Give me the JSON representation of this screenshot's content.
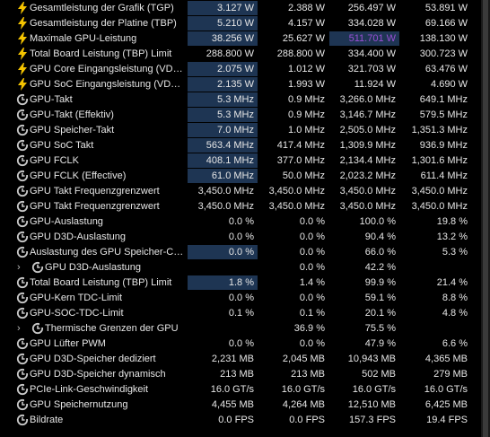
{
  "rows": [
    {
      "icon": "bolt",
      "label": "Gesamtleistung der Grafik (TGP)",
      "v": [
        "3.127 W",
        "2.388 W",
        "256.497 W",
        "53.891 W"
      ],
      "hi": [
        true,
        false,
        false,
        false
      ]
    },
    {
      "icon": "bolt",
      "label": "Gesamtleistung der Platine (TBP)",
      "v": [
        "5.210 W",
        "4.157 W",
        "334.028 W",
        "69.166 W"
      ],
      "hi": [
        true,
        false,
        false,
        false
      ]
    },
    {
      "icon": "bolt",
      "label": "Maximale GPU-Leistung",
      "v": [
        "38.256 W",
        "25.627 W",
        "511.701 W",
        "138.130 W"
      ],
      "hi": [
        true,
        false,
        "max",
        false
      ]
    },
    {
      "icon": "bolt",
      "label": "Total Board Leistung (TBP) Limit",
      "v": [
        "288.800 W",
        "288.800 W",
        "334.400 W",
        "300.723 W"
      ],
      "hi": [
        false,
        false,
        false,
        false
      ]
    },
    {
      "icon": "bolt",
      "label": "GPU Core Eingangsleistung (VDDC...",
      "v": [
        "2.075 W",
        "1.012 W",
        "321.703 W",
        "63.476 W"
      ],
      "hi": [
        true,
        false,
        false,
        false
      ]
    },
    {
      "icon": "bolt",
      "label": "GPU SoC Eingangsleistung (VDDC...",
      "v": [
        "2.135 W",
        "1.993 W",
        "11.924 W",
        "4.690 W"
      ],
      "hi": [
        true,
        false,
        false,
        false
      ]
    },
    {
      "icon": "clock",
      "label": "GPU-Takt",
      "v": [
        "5.3 MHz",
        "0.9 MHz",
        "3,266.0 MHz",
        "649.1 MHz"
      ],
      "hi": [
        true,
        false,
        false,
        false
      ]
    },
    {
      "icon": "clock",
      "label": "GPU-Takt (Effektiv)",
      "v": [
        "5.3 MHz",
        "0.9 MHz",
        "3,146.7 MHz",
        "579.5 MHz"
      ],
      "hi": [
        true,
        false,
        false,
        false
      ]
    },
    {
      "icon": "clock",
      "label": "GPU Speicher-Takt",
      "v": [
        "7.0 MHz",
        "1.0 MHz",
        "2,505.0 MHz",
        "1,351.3 MHz"
      ],
      "hi": [
        true,
        false,
        false,
        false
      ]
    },
    {
      "icon": "clock",
      "label": "GPU SoC Takt",
      "v": [
        "563.4 MHz",
        "417.4 MHz",
        "1,309.9 MHz",
        "936.9 MHz"
      ],
      "hi": [
        true,
        false,
        false,
        false
      ]
    },
    {
      "icon": "clock",
      "label": "GPU FCLK",
      "v": [
        "408.1 MHz",
        "377.0 MHz",
        "2,134.4 MHz",
        "1,301.6 MHz"
      ],
      "hi": [
        true,
        false,
        false,
        false
      ]
    },
    {
      "icon": "clock",
      "label": "GPU FCLK (Effective)",
      "v": [
        "61.0 MHz",
        "50.0 MHz",
        "2,023.2 MHz",
        "611.4 MHz"
      ],
      "hi": [
        true,
        false,
        false,
        false
      ]
    },
    {
      "icon": "clock",
      "label": "GPU Takt Frequenzgrenzwert",
      "v": [
        "3,450.0 MHz",
        "3,450.0 MHz",
        "3,450.0 MHz",
        "3,450.0 MHz"
      ],
      "hi": [
        false,
        false,
        false,
        false
      ]
    },
    {
      "icon": "clock",
      "label": "GPU Takt Frequenzgrenzwert",
      "v": [
        "3,450.0 MHz",
        "3,450.0 MHz",
        "3,450.0 MHz",
        "3,450.0 MHz"
      ],
      "hi": [
        false,
        false,
        false,
        false
      ]
    },
    {
      "icon": "clock",
      "label": "GPU-Auslastung",
      "v": [
        "0.0 %",
        "0.0 %",
        "100.0 %",
        "19.8 %"
      ],
      "hi": [
        false,
        false,
        false,
        false
      ]
    },
    {
      "icon": "clock",
      "label": "GPU D3D-Auslastung",
      "v": [
        "0.0 %",
        "0.0 %",
        "90.4 %",
        "13.2 %"
      ],
      "hi": [
        false,
        false,
        false,
        false
      ]
    },
    {
      "icon": "clock",
      "label": "Auslastung des GPU Speicher-Co...",
      "v": [
        "0.0 %",
        "0.0 %",
        "66.0 %",
        "5.3 %"
      ],
      "hi": [
        true,
        false,
        false,
        false
      ]
    },
    {
      "icon": "clock",
      "label": "GPU D3D-Auslastung",
      "child": true,
      "v": [
        "",
        "0.0 %",
        "42.2 %",
        ""
      ],
      "hi": [
        false,
        false,
        false,
        false
      ]
    },
    {
      "icon": "clock",
      "label": "Total Board Leistung (TBP) Limit",
      "v": [
        "1.8 %",
        "1.4 %",
        "99.9 %",
        "21.4 %"
      ],
      "hi": [
        true,
        false,
        false,
        false
      ]
    },
    {
      "icon": "clock",
      "label": "GPU-Kern TDC-Limit",
      "v": [
        "0.0 %",
        "0.0 %",
        "59.1 %",
        "8.8 %"
      ],
      "hi": [
        false,
        false,
        false,
        false
      ]
    },
    {
      "icon": "clock",
      "label": "GPU-SOC-TDC-Limit",
      "v": [
        "0.1 %",
        "0.1 %",
        "20.1 %",
        "4.8 %"
      ],
      "hi": [
        false,
        false,
        false,
        false
      ]
    },
    {
      "icon": "clock",
      "label": "Thermische Grenzen der GPU",
      "child": true,
      "v": [
        "",
        "36.9 %",
        "75.5 %",
        ""
      ],
      "hi": [
        false,
        false,
        false,
        false
      ]
    },
    {
      "icon": "clock",
      "label": "GPU Lüfter PWM",
      "v": [
        "0.0 %",
        "0.0 %",
        "47.9 %",
        "6.6 %"
      ],
      "hi": [
        false,
        false,
        false,
        false
      ]
    },
    {
      "icon": "clock",
      "label": "GPU D3D-Speicher dediziert",
      "v": [
        "2,231 MB",
        "2,045 MB",
        "10,943 MB",
        "4,365 MB"
      ],
      "hi": [
        false,
        false,
        false,
        false
      ]
    },
    {
      "icon": "clock",
      "label": "GPU D3D-Speicher dynamisch",
      "v": [
        "213 MB",
        "213 MB",
        "502 MB",
        "279 MB"
      ],
      "hi": [
        false,
        false,
        false,
        false
      ]
    },
    {
      "icon": "clock",
      "label": "PCIe-Link-Geschwindigkeit",
      "v": [
        "16.0 GT/s",
        "16.0 GT/s",
        "16.0 GT/s",
        "16.0 GT/s"
      ],
      "hi": [
        false,
        false,
        false,
        false
      ]
    },
    {
      "icon": "clock",
      "label": "GPU Speichernutzung",
      "v": [
        "4,455 MB",
        "4,264 MB",
        "12,510 MB",
        "6,425 MB"
      ],
      "hi": [
        false,
        false,
        false,
        false
      ]
    },
    {
      "icon": "clock",
      "label": "Bildrate",
      "v": [
        "0.0 FPS",
        "0.0 FPS",
        "157.3 FPS",
        "19.4 FPS"
      ],
      "hi": [
        false,
        false,
        false,
        false
      ]
    }
  ],
  "colors": {
    "bolt": "#f5c400",
    "clock": "#c8c8c8",
    "max_highlight": "#9b4fd6",
    "cell_highlight": "#1e3553"
  }
}
